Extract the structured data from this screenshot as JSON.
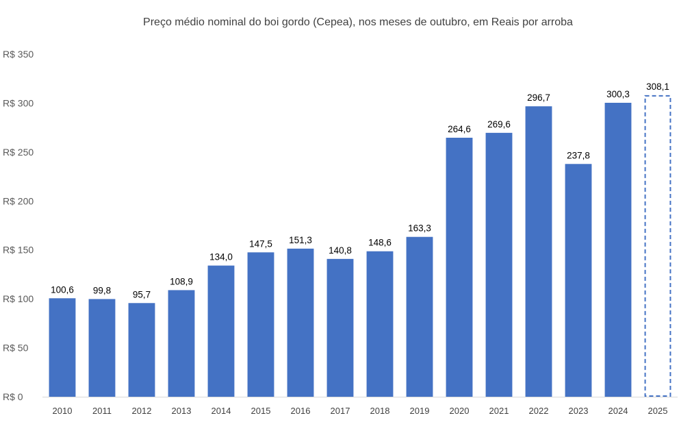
{
  "chart_data": {
    "type": "bar",
    "title": "Preço médio nominal do boi gordo (Cepea), nos meses de outubro, em Reais por arroba",
    "xlabel": "",
    "ylabel": "",
    "categories": [
      "2010",
      "2011",
      "2012",
      "2013",
      "2014",
      "2015",
      "2016",
      "2017",
      "2018",
      "2019",
      "2020",
      "2021",
      "2022",
      "2023",
      "2024",
      "2025"
    ],
    "values": [
      100.6,
      99.8,
      95.7,
      108.9,
      134.0,
      147.5,
      151.3,
      140.8,
      148.6,
      163.3,
      264.6,
      269.6,
      296.7,
      237.8,
      300.3,
      308.1
    ],
    "value_labels": [
      "100,6",
      "99,8",
      "95,7",
      "108,9",
      "134,0",
      "147,5",
      "151,3",
      "140,8",
      "148,6",
      "163,3",
      "264,6",
      "269,6",
      "296,7",
      "237,8",
      "300,3",
      "308,1"
    ],
    "projected": [
      false,
      false,
      false,
      false,
      false,
      false,
      false,
      false,
      false,
      false,
      false,
      false,
      false,
      false,
      false,
      true
    ],
    "ylim": [
      0,
      350
    ],
    "yticks": [
      0,
      50,
      100,
      150,
      200,
      250,
      300,
      350
    ],
    "ytick_labels": [
      "R$ 0",
      "R$ 50",
      "R$ 100",
      "R$ 150",
      "R$ 200",
      "R$ 250",
      "R$ 300",
      "R$ 350"
    ],
    "grid": false,
    "legend": "none",
    "colors": {
      "bar": "#4472C4",
      "projected_outline": "#4472C4",
      "text": "#404040"
    }
  }
}
